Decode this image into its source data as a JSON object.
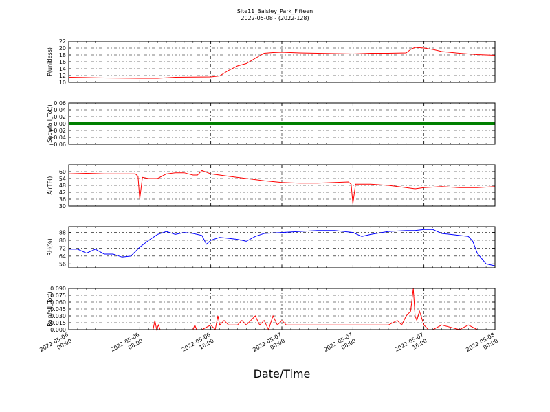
{
  "header": {
    "title": "Site11_Baisley_Park_Fifteen",
    "subtitle": "2022-05-08 - (2022-128)"
  },
  "xlabel": "Date/Time",
  "x_tick_labels": [
    [
      "2022-05-06",
      "00:00"
    ],
    [
      "2022-05-06",
      "08:00"
    ],
    [
      "2022-05-06",
      "16:00"
    ],
    [
      "2022-05-07",
      "00:00"
    ],
    [
      "2022-05-07",
      "08:00"
    ],
    [
      "2022-05-07",
      "16:00"
    ],
    [
      "2022-05-08",
      "00:00"
    ]
  ],
  "chart_data": [
    {
      "type": "line",
      "ylabel": "P(unitless)",
      "color": "#ff0000",
      "ylim": [
        10,
        22
      ],
      "yticks": [
        10,
        12,
        14,
        16,
        18,
        20,
        22
      ],
      "tick_labels": [
        "10",
        "12",
        "14",
        "16",
        "18",
        "20",
        "22"
      ],
      "xlim": [
        0,
        48
      ],
      "x": [
        0,
        4,
        8,
        10,
        12,
        16,
        17,
        18,
        19,
        20,
        21,
        22,
        23,
        24,
        26,
        28,
        30,
        32,
        34,
        36,
        38,
        38.5,
        39,
        40,
        41,
        42,
        44,
        46,
        48
      ],
      "y": [
        11.5,
        11.3,
        11.2,
        11.2,
        11.5,
        11.6,
        11.9,
        13.5,
        14.8,
        15.5,
        17,
        18.5,
        18.7,
        18.8,
        18.6,
        18.5,
        18.4,
        18.3,
        18.5,
        18.5,
        18.6,
        19.6,
        20.2,
        20.0,
        19.6,
        19.0,
        18.5,
        18.1,
        17.9
      ]
    },
    {
      "type": "line",
      "ylabel": "Snowfall_Tot()",
      "color": "#008000",
      "ylim": [
        -0.06,
        0.06
      ],
      "yticks": [
        -0.06,
        -0.04,
        -0.02,
        0,
        0.02,
        0.04,
        0.06
      ],
      "tick_labels": [
        "−0.06",
        "−0.04",
        "−0.02",
        "0.00",
        "0.02",
        "0.04",
        "0.06"
      ],
      "xlim": [
        0,
        48
      ],
      "x": [
        0,
        48
      ],
      "y": [
        0,
        0
      ]
    },
    {
      "type": "line",
      "ylabel": "AirTF()",
      "color": "#ff0000",
      "ylim": [
        30,
        66
      ],
      "yticks": [
        30,
        36,
        42,
        48,
        54,
        60
      ],
      "tick_labels": [
        "30",
        "36",
        "42",
        "48",
        "54",
        "60"
      ],
      "xlim": [
        0,
        48
      ],
      "x": [
        0,
        2,
        4,
        6,
        7.5,
        7.8,
        8,
        8.3,
        9,
        10,
        11,
        12,
        13,
        14,
        14.5,
        15,
        16,
        17,
        18,
        20,
        22,
        24,
        26,
        28,
        30,
        31.5,
        31.8,
        32,
        32.3,
        34,
        36,
        38,
        39,
        40,
        42,
        44,
        46,
        48
      ],
      "y": [
        58,
        58.5,
        58,
        58,
        58,
        56,
        36,
        55,
        54,
        54,
        58,
        59,
        59,
        57,
        57,
        61,
        58,
        57,
        56,
        54,
        52,
        50.5,
        50,
        50,
        50.5,
        51,
        49,
        32,
        49,
        49,
        48,
        46,
        45,
        46,
        47,
        46,
        46,
        47
      ]
    },
    {
      "type": "line",
      "ylabel": "RH(%)",
      "color": "#0000ff",
      "ylim": [
        52,
        94
      ],
      "yticks": [
        56,
        64,
        72,
        80,
        88
      ],
      "tick_labels": [
        "56",
        "64",
        "72",
        "80",
        "88"
      ],
      "xlim": [
        0,
        48
      ],
      "x": [
        0,
        1,
        2,
        3,
        4,
        5,
        6,
        7,
        8,
        9,
        10,
        11,
        12,
        13,
        14,
        15,
        15.5,
        16,
        17,
        18,
        19,
        20,
        21,
        22,
        24,
        26,
        28,
        30,
        32,
        33,
        34,
        36,
        38,
        39,
        40,
        41,
        42,
        43,
        44,
        45,
        45.5,
        46,
        47,
        48
      ],
      "y": [
        71,
        71,
        67,
        71,
        66,
        66,
        63,
        64,
        73,
        80,
        86,
        89,
        86,
        88,
        87,
        85,
        76,
        80,
        83,
        82,
        81,
        79,
        84,
        87,
        88,
        89,
        90,
        90,
        88,
        84,
        86,
        89,
        90,
        90,
        91,
        91,
        87,
        86,
        85,
        84,
        79,
        67,
        56,
        54
      ]
    },
    {
      "type": "line",
      "ylabel": "Rainfall_Tot()",
      "color": "#ff0000",
      "ylim": [
        0,
        0.09
      ],
      "yticks": [
        0,
        0.015,
        0.03,
        0.045,
        0.06,
        0.075,
        0.09
      ],
      "tick_labels": [
        "0.000",
        "0.015",
        "0.030",
        "0.045",
        "0.060",
        "0.075",
        "0.090"
      ],
      "xlim": [
        0,
        48
      ],
      "x": [
        0,
        9.5,
        9.7,
        9.9,
        10.1,
        10.3,
        14,
        14.2,
        14.4,
        15,
        16,
        16.5,
        16.8,
        17,
        17.5,
        18,
        19,
        19.5,
        20,
        20.5,
        21,
        21.5,
        22,
        22.5,
        23,
        23.5,
        24,
        24.5,
        26,
        28,
        30,
        32,
        34,
        35,
        36,
        37,
        37.5,
        38,
        38.5,
        38.8,
        39,
        39.2,
        39.5,
        40,
        40.5,
        41,
        42,
        44,
        45,
        46,
        48
      ],
      "y": [
        0,
        0,
        0.02,
        0,
        0.01,
        0,
        0,
        0.01,
        0,
        0,
        0.01,
        0,
        0.03,
        0.01,
        0.02,
        0.01,
        0.01,
        0.02,
        0.01,
        0.02,
        0.03,
        0.01,
        0.02,
        0,
        0.03,
        0.01,
        0.02,
        0.01,
        0.01,
        0.01,
        0.01,
        0.01,
        0.01,
        0.01,
        0.01,
        0.02,
        0.01,
        0.03,
        0.04,
        0.09,
        0.03,
        0.02,
        0.04,
        0.01,
        0,
        0,
        0.01,
        0,
        0.01,
        0,
        0
      ]
    }
  ]
}
